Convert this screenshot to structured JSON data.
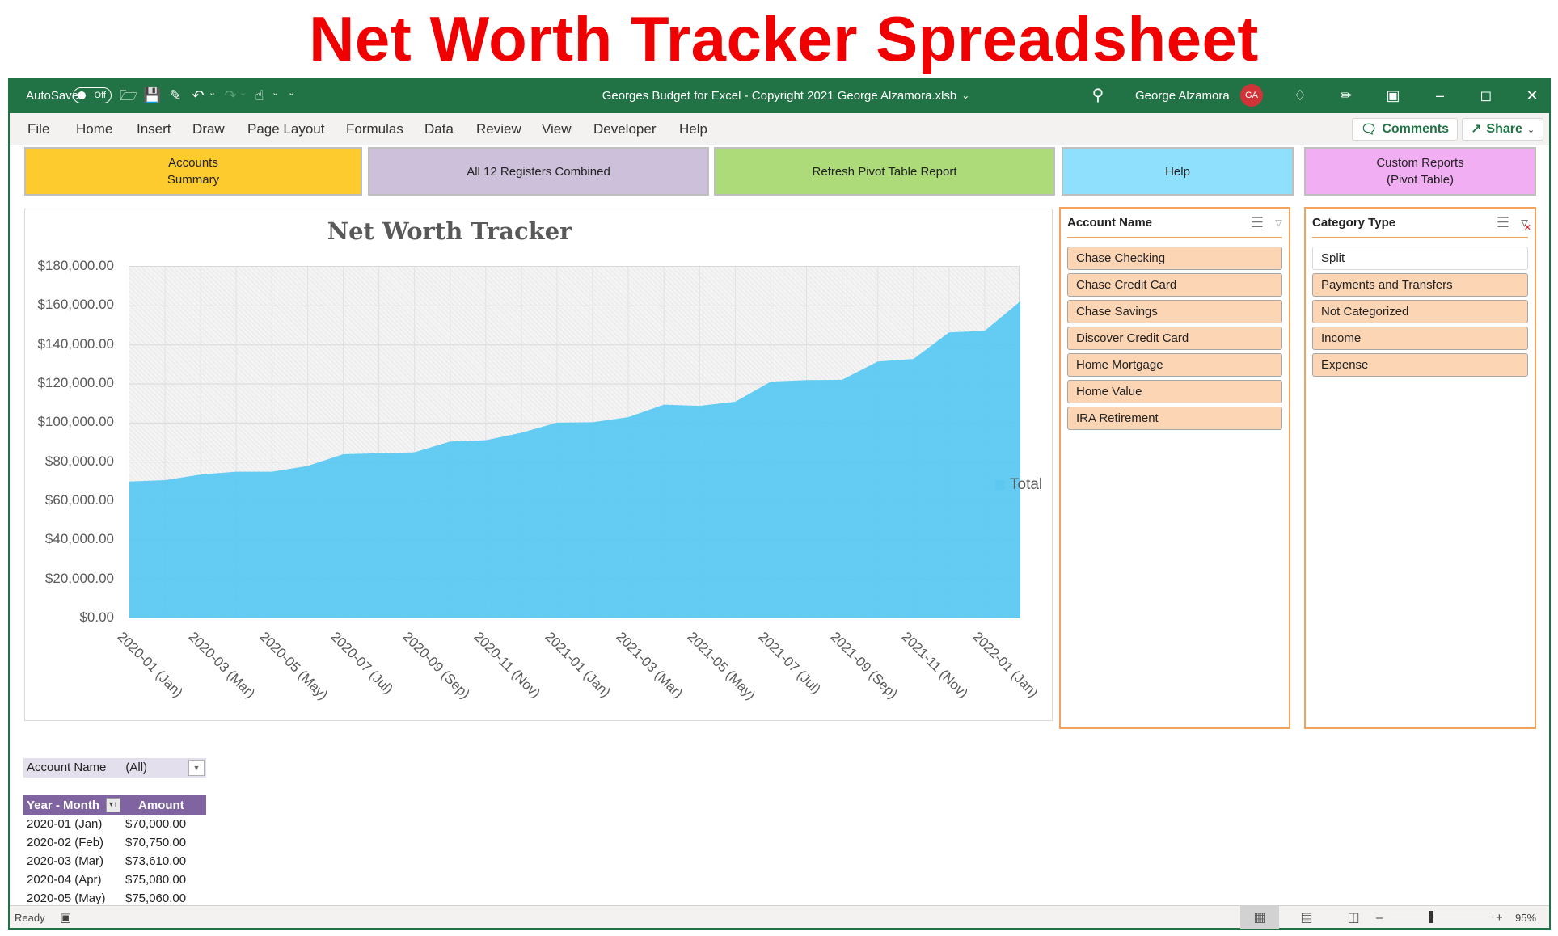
{
  "page_title": "Net Worth Tracker Spreadsheet",
  "titlebar": {
    "autosave_label": "AutoSave",
    "autosave_state": "Off",
    "document_title": "Georges Budget for Excel - Copyright 2021 George Alzamora.xlsb",
    "user_name": "George Alzamora",
    "user_initials": "GA"
  },
  "ribbon": {
    "tabs": [
      "File",
      "Home",
      "Insert",
      "Draw",
      "Page Layout",
      "Formulas",
      "Data",
      "Review",
      "View",
      "Developer",
      "Help"
    ],
    "comments_label": "Comments",
    "share_label": "Share"
  },
  "macro_buttons": [
    {
      "label": "Accounts\nSummary",
      "color": "#fecb2f"
    },
    {
      "label": "All 12 Registers Combined",
      "color": "#ccc0da"
    },
    {
      "label": "Refresh Pivot Table Report",
      "color": "#aedb7a"
    },
    {
      "label": "Help",
      "color": "#8ee0fd"
    },
    {
      "label": "Custom Reports\n(Pivot Table)",
      "color": "#f2aef2"
    }
  ],
  "chart_data": {
    "type": "area",
    "title": "Net Worth Tracker",
    "xlabel": "",
    "ylabel": "",
    "ylim": [
      0,
      180000
    ],
    "y_ticks": [
      "$0.00",
      "$20,000.00",
      "$40,000.00",
      "$60,000.00",
      "$80,000.00",
      "$100,000.00",
      "$120,000.00",
      "$140,000.00",
      "$160,000.00",
      "$180,000.00"
    ],
    "x_tick_labels": [
      "2020-01 (Jan)",
      "2020-03 (Mar)",
      "2020-05 (May)",
      "2020-07 (Jul)",
      "2020-09 (Sep)",
      "2020-11 (Nov)",
      "2021-01 (Jan)",
      "2021-03 (Mar)",
      "2021-05 (May)",
      "2021-07 (Jul)",
      "2021-09 (Sep)",
      "2021-11 (Nov)",
      "2022-01 (Jan)"
    ],
    "categories": [
      "2020-01 (Jan)",
      "2020-02 (Feb)",
      "2020-03 (Mar)",
      "2020-04 (Apr)",
      "2020-05 (May)",
      "2020-06 (Jun)",
      "2020-07 (Jul)",
      "2020-08 (Aug)",
      "2020-09 (Sep)",
      "2020-10 (Oct)",
      "2020-11 (Nov)",
      "2020-12 (Dec)",
      "2021-01 (Jan)",
      "2021-02 (Feb)",
      "2021-03 (Mar)",
      "2021-04 (Apr)",
      "2021-05 (May)",
      "2021-06 (Jun)",
      "2021-07 (Jul)",
      "2021-08 (Aug)",
      "2021-09 (Sep)",
      "2021-10 (Oct)",
      "2021-11 (Nov)",
      "2021-12 (Dec)",
      "2022-01 (Jan)",
      "2022-02 (Feb)"
    ],
    "series": [
      {
        "name": "Total",
        "color": "#5cc8f2",
        "values": [
          70000,
          70750,
          73610,
          75080,
          75060,
          78000,
          84000,
          84500,
          85000,
          90500,
          91200,
          95000,
          100200,
          100400,
          103000,
          109400,
          108800,
          110900,
          121200,
          122000,
          122100,
          131500,
          132800,
          146400,
          147200,
          162300
        ]
      }
    ],
    "grid": true,
    "legend_position": "right"
  },
  "slicers": [
    {
      "title": "Account Name",
      "items": [
        {
          "label": "Chase Checking",
          "selected": true
        },
        {
          "label": "Chase Credit Card",
          "selected": true
        },
        {
          "label": "Chase Savings",
          "selected": true
        },
        {
          "label": "Discover Credit Card",
          "selected": true
        },
        {
          "label": "Home Mortgage",
          "selected": true
        },
        {
          "label": "Home Value",
          "selected": true
        },
        {
          "label": "IRA Retirement",
          "selected": true
        }
      ]
    },
    {
      "title": "Category Type",
      "items": [
        {
          "label": "Split",
          "selected": false
        },
        {
          "label": "Payments and Transfers",
          "selected": true
        },
        {
          "label": "Not Categorized",
          "selected": true
        },
        {
          "label": "Income",
          "selected": true
        },
        {
          "label": "Expense",
          "selected": true
        }
      ]
    }
  ],
  "pivot": {
    "filter_label": "Account Name",
    "filter_value": "(All)",
    "headers": [
      "Year - Month",
      "Amount"
    ],
    "rows": [
      [
        "2020-01 (Jan)",
        "$70,000.00"
      ],
      [
        "2020-02 (Feb)",
        "$70,750.00"
      ],
      [
        "2020-03 (Mar)",
        "$73,610.00"
      ],
      [
        "2020-04 (Apr)",
        "$75,080.00"
      ],
      [
        "2020-05 (May)",
        "$75,060.00"
      ]
    ],
    "header_color": "#8064a2"
  },
  "statusbar": {
    "status": "Ready",
    "zoom": "95%"
  }
}
